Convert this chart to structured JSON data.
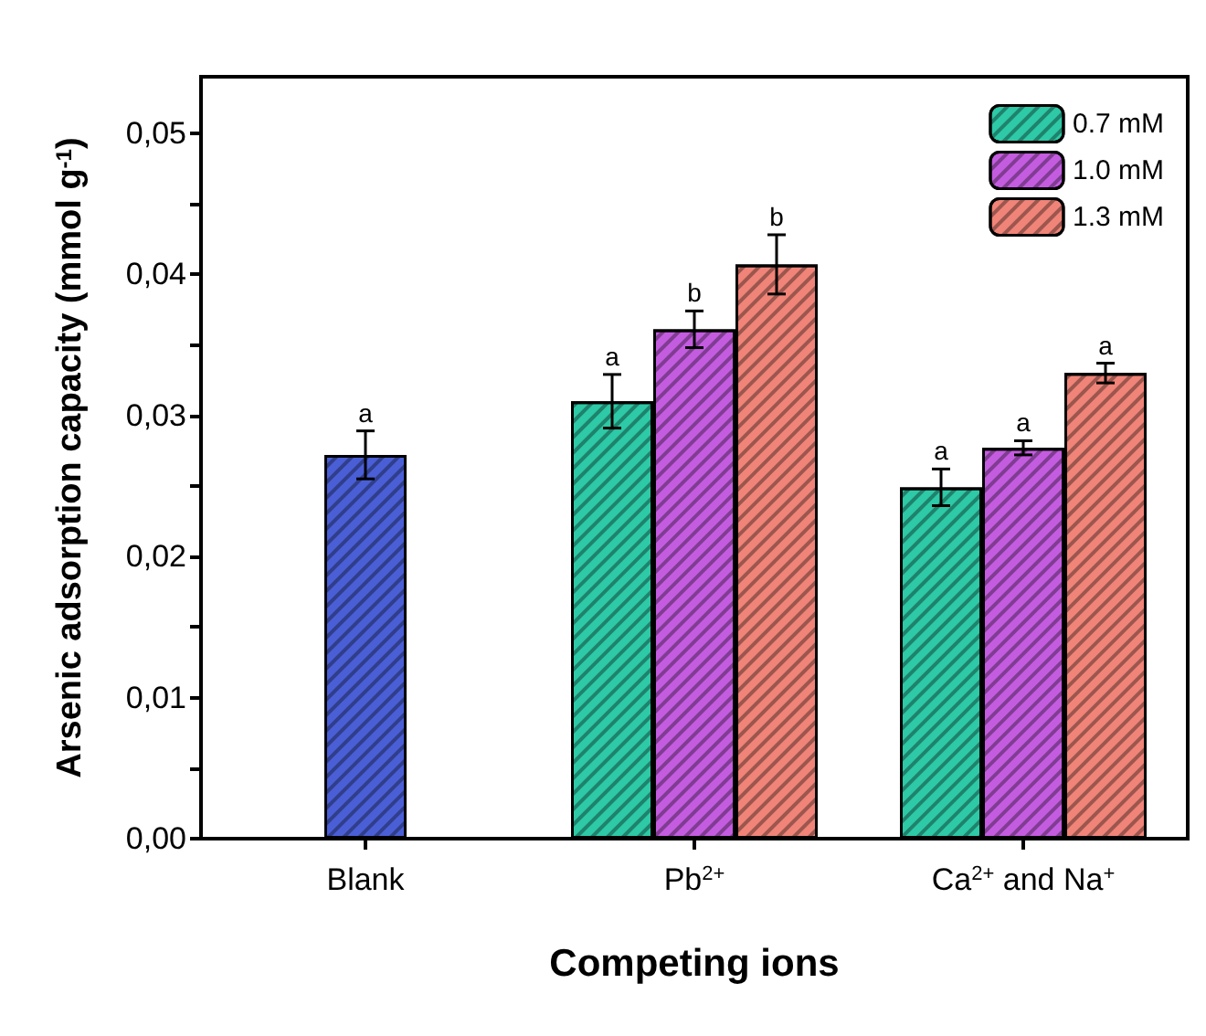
{
  "chart_data": {
    "type": "bar",
    "xlabel": "Competing ions",
    "ylabel": "Arsenic adsorption capacity (mmol g$^{-1}$)",
    "categories": [
      "Blank",
      "Pb$^{2+}$",
      "Ca$^{2+}$ and Na$^{+}$"
    ],
    "series": [
      {
        "color": "#4a5fd6",
        "values": [
          0.0272,
          null,
          null
        ],
        "errors": [
          0.0017,
          null,
          null
        ],
        "value_labels": [
          "a",
          null,
          null
        ]
      },
      {
        "name": "0.7 mM",
        "color": "#2ec9a6",
        "values": [
          null,
          0.031,
          0.0249
        ],
        "errors": [
          null,
          0.0019,
          0.0013
        ],
        "value_labels": [
          null,
          "a",
          "a"
        ]
      },
      {
        "name": "1.0 mM",
        "color": "#c45ce0",
        "values": [
          null,
          0.0361,
          0.0277
        ],
        "errors": [
          null,
          0.0013,
          0.0005
        ],
        "value_labels": [
          null,
          "b",
          "a"
        ]
      },
      {
        "name": "1.3 mM",
        "color": "#f08478",
        "values": [
          null,
          0.0407,
          0.033
        ],
        "errors": [
          null,
          0.0021,
          0.0007
        ],
        "value_labels": [
          null,
          "b",
          "a"
        ]
      }
    ],
    "ylim": [
      0,
      0.054
    ],
    "yticks": [
      {
        "value": 0,
        "label": "0,00"
      },
      {
        "value": 0.005,
        "label": null
      },
      {
        "value": 0.01,
        "label": "0,01"
      },
      {
        "value": 0.015,
        "label": null
      },
      {
        "value": 0.02,
        "label": "0,02"
      },
      {
        "value": 0.025,
        "label": null
      },
      {
        "value": 0.03,
        "label": "0,03"
      },
      {
        "value": 0.035,
        "label": null
      },
      {
        "value": 0.04,
        "label": "0,04"
      },
      {
        "value": 0.045,
        "label": null
      },
      {
        "value": 0.05,
        "label": "0,05"
      }
    ],
    "grid": false,
    "legend": "top right"
  }
}
